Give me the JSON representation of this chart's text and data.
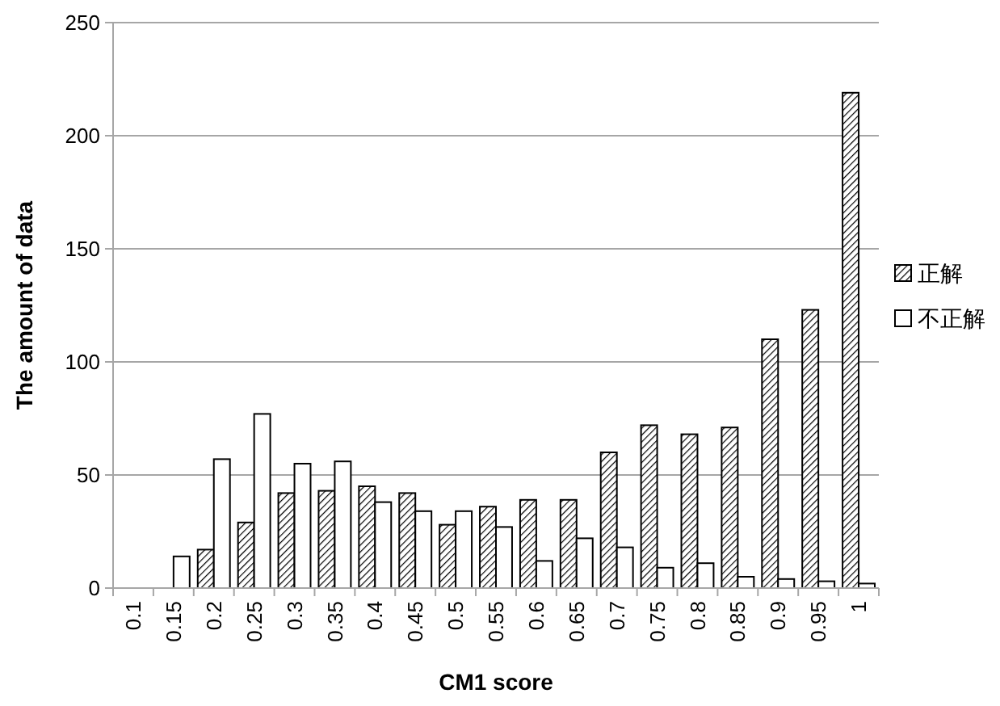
{
  "chart_data": {
    "type": "bar",
    "xlabel": "CM1 score",
    "ylabel": "The amount of data",
    "categories": [
      "0.1",
      "0.15",
      "0.2",
      "0.25",
      "0.3",
      "0.35",
      "0.4",
      "0.45",
      "0.5",
      "0.55",
      "0.6",
      "0.65",
      "0.7",
      "0.75",
      "0.8",
      "0.85",
      "0.9",
      "0.95",
      "1"
    ],
    "series": [
      {
        "name": "正解",
        "color": "#000000",
        "values": [
          0,
          0,
          17,
          29,
          42,
          43,
          45,
          42,
          28,
          36,
          39,
          39,
          60,
          72,
          68,
          71,
          110,
          123,
          219
        ]
      },
      {
        "name": "不正解",
        "color": "#ffffff",
        "values": [
          0,
          14,
          57,
          77,
          55,
          56,
          38,
          34,
          34,
          27,
          12,
          22,
          18,
          9,
          11,
          5,
          4,
          3,
          2
        ]
      }
    ],
    "ylim": [
      0,
      250
    ],
    "yticks": [
      0,
      50,
      100,
      150,
      200,
      250
    ],
    "grid": "y",
    "legend": "right"
  }
}
